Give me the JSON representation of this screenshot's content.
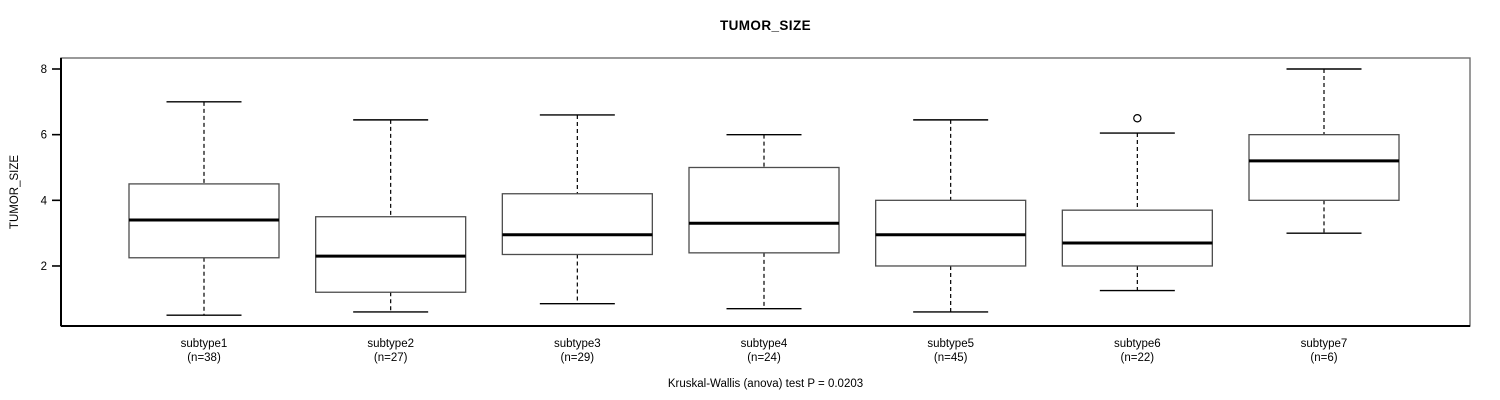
{
  "figure": {
    "title": "TUMOR_SIZE",
    "ylabel": "TUMOR_SIZE",
    "caption": "Kruskal-Wallis (anova) test P = 0.0203"
  },
  "chart_data": {
    "type": "boxplot",
    "title": "TUMOR_SIZE",
    "xlabel": "",
    "ylabel": "TUMOR_SIZE",
    "ylim": [
      0.17,
      8.34
    ],
    "yticks": [
      2,
      4,
      6,
      8
    ],
    "grid": false,
    "legend": false,
    "caption": "Kruskal-Wallis (anova) test P = 0.0203",
    "test_name": "Kruskal-Wallis (anova) test",
    "p_value": 0.0203,
    "colors": {
      "box_fill": "#ffffff",
      "box_stroke": "#4d4d4d",
      "line": "#000000",
      "frame_shadow": "#6e6e6e"
    },
    "groups": [
      {
        "label": "subtype1",
        "n_label": "(n=38)",
        "n": 38,
        "stats": {
          "whisker_low": 0.5,
          "q1": 2.25,
          "median": 3.4,
          "q3": 4.5,
          "whisker_high": 7.0,
          "outliers": []
        }
      },
      {
        "label": "subtype2",
        "n_label": "(n=27)",
        "n": 27,
        "stats": {
          "whisker_low": 0.6,
          "q1": 1.2,
          "median": 2.3,
          "q3": 3.5,
          "whisker_high": 6.45,
          "outliers": []
        }
      },
      {
        "label": "subtype3",
        "n_label": "(n=29)",
        "n": 29,
        "stats": {
          "whisker_low": 0.85,
          "q1": 2.35,
          "median": 2.95,
          "q3": 4.2,
          "whisker_high": 6.6,
          "outliers": []
        }
      },
      {
        "label": "subtype4",
        "n_label": "(n=24)",
        "n": 24,
        "stats": {
          "whisker_low": 0.7,
          "q1": 2.4,
          "median": 3.3,
          "q3": 5.0,
          "whisker_high": 6.0,
          "outliers": []
        }
      },
      {
        "label": "subtype5",
        "n_label": "(n=45)",
        "n": 45,
        "stats": {
          "whisker_low": 0.6,
          "q1": 2.0,
          "median": 2.95,
          "q3": 4.0,
          "whisker_high": 6.45,
          "outliers": []
        }
      },
      {
        "label": "subtype6",
        "n_label": "(n=22)",
        "n": 22,
        "stats": {
          "whisker_low": 1.25,
          "q1": 2.0,
          "median": 2.7,
          "q3": 3.7,
          "whisker_high": 6.05,
          "outliers": [
            6.5
          ]
        }
      },
      {
        "label": "subtype7",
        "n_label": "(n=6)",
        "n": 6,
        "stats": {
          "whisker_low": 3.0,
          "q1": 4.0,
          "median": 5.2,
          "q3": 6.0,
          "whisker_high": 8.0,
          "outliers": []
        }
      }
    ]
  }
}
